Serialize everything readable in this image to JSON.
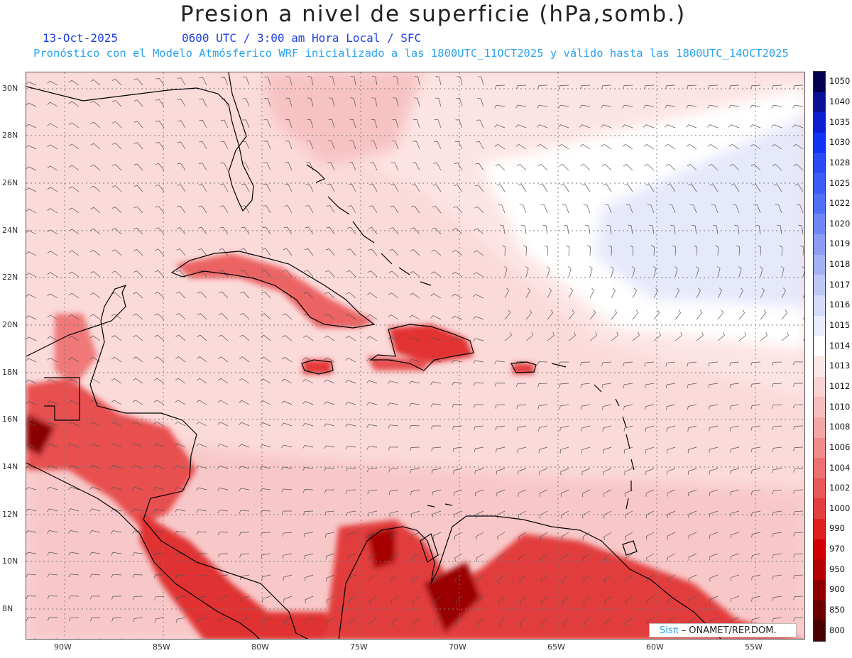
{
  "header": {
    "title": "Presion a nivel de superficie (hPa,somb.)",
    "date": "13-Oct-2025",
    "valid_time": "0600 UTC / 3:00 am Hora Local / SFC",
    "model_line": "Pronóstico con el Modelo Atmósferico WRF inicializado a las 1800UTC_11OCT2025 y válido hasta las  1800UTC_14OCT2025"
  },
  "map": {
    "lat_labels": [
      "30N",
      "28N",
      "26N",
      "24N",
      "22N",
      "20N",
      "18N",
      "16N",
      "14N",
      "12N",
      "10N",
      "8N"
    ],
    "lon_labels": [
      "90W",
      "85W",
      "80W",
      "75W",
      "70W",
      "65W",
      "60W",
      "55W"
    ],
    "lat_range": [
      6.8,
      30.7
    ],
    "lon_range": [
      -92,
      -52.5
    ]
  },
  "colorbar": {
    "levels": [
      "1050",
      "1040",
      "1035",
      "1030",
      "1028",
      "1025",
      "1022",
      "1020",
      "1019",
      "1018",
      "1017",
      "1016",
      "1015",
      "1014",
      "1013",
      "1012",
      "1010",
      "1008",
      "1006",
      "1004",
      "1002",
      "1000",
      "990",
      "970",
      "950",
      "900",
      "850",
      "800"
    ],
    "colors": [
      "#050050",
      "#0a1296",
      "#0a1fd2",
      "#1434f5",
      "#2a4cf5",
      "#3a5ef5",
      "#5070f5",
      "#6f88f5",
      "#8b9cf5",
      "#a4b2f5",
      "#bdc8f7",
      "#d3dbfa",
      "#e8ecfc",
      "#ffffff",
      "#fde6e6",
      "#fad2d2",
      "#f7bebe",
      "#f4a6a6",
      "#f08c8c",
      "#ec7272",
      "#e85858",
      "#e23e3e",
      "#dc2020",
      "#d00000",
      "#b40000",
      "#8c0000",
      "#6a0000",
      "#480000"
    ]
  },
  "credit": {
    "brand": "Sisπ",
    "org": " – ONAMET/REP.DOM."
  }
}
